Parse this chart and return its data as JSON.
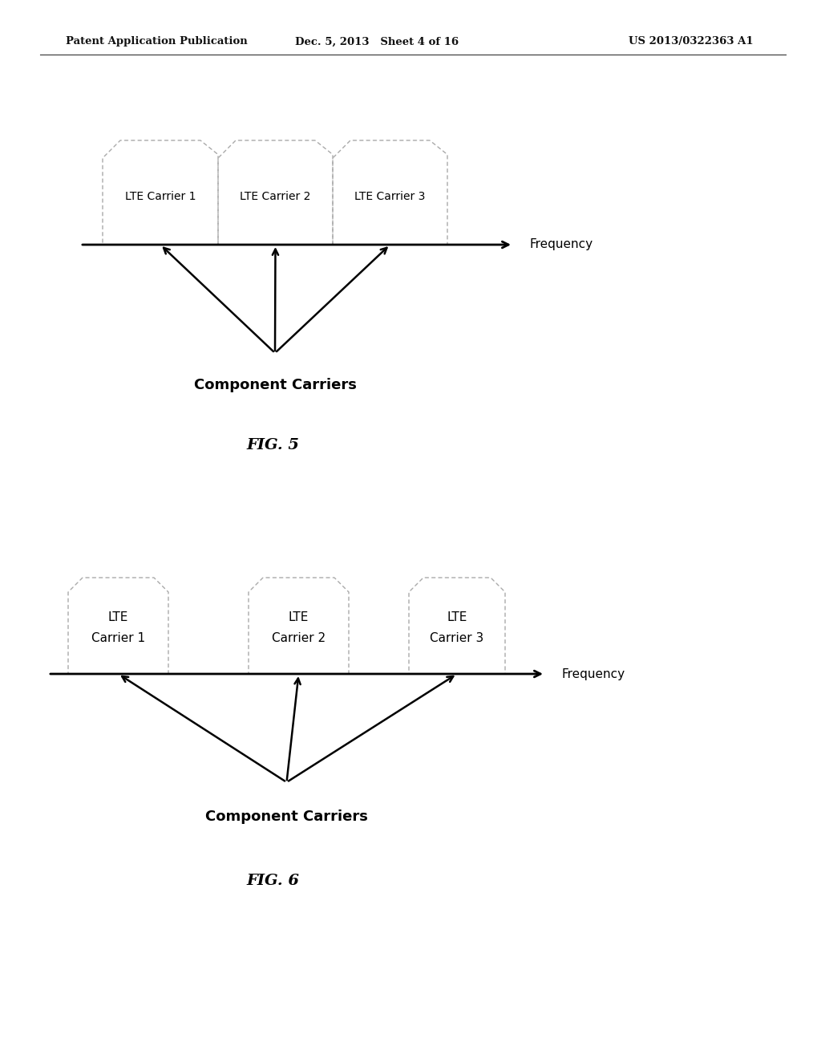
{
  "bg_color": "#ffffff",
  "header_left": "Patent Application Publication",
  "header_mid": "Dec. 5, 2013   Sheet 4 of 16",
  "header_right": "US 2013/0322363 A1",
  "fig5_label": "FIG. 5",
  "fig6_label": "FIG. 6",
  "fig5_carriers": [
    "LTE Carrier 1",
    "LTE Carrier 2",
    "LTE Carrier 3"
  ],
  "fig5_freq_label": "Frequency",
  "fig5_component_label": "Component Carriers",
  "fig6_carriers_line1": [
    "LTE",
    "LTE",
    "LTE"
  ],
  "fig6_carriers_line2": [
    "Carrier 1",
    "Carrier 2",
    "Carrier 3"
  ],
  "fig6_freq_label": "Frequency",
  "fig6_component_label": "Component Carriers"
}
